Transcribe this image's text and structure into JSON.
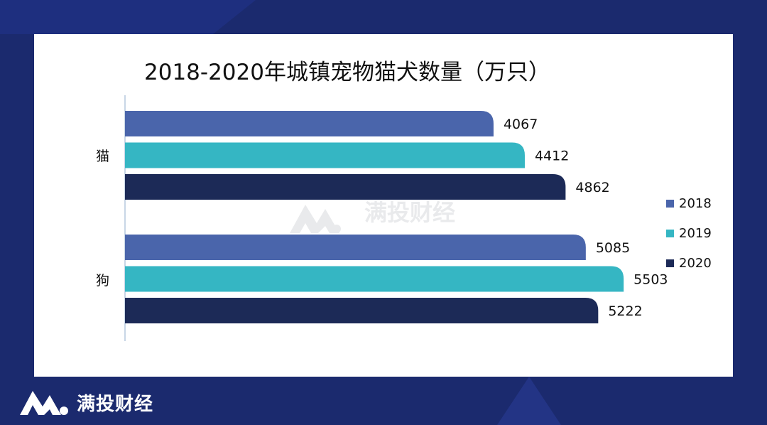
{
  "brand": {
    "name": "满投财经",
    "watermark": "满投财经",
    "colors": {
      "background": "#1b2a6e",
      "card": "#ffffff"
    }
  },
  "chart_data": {
    "type": "bar",
    "orientation": "horizontal",
    "title": "2018-2020年城镇宠物猫犬数量（万只）",
    "categories": [
      "猫",
      "狗"
    ],
    "series": [
      {
        "name": "2018",
        "color": "#4a65ab",
        "values": [
          4067,
          5085
        ]
      },
      {
        "name": "2019",
        "color": "#35b6c3",
        "values": [
          4412,
          5503
        ]
      },
      {
        "name": "2020",
        "color": "#1c2a57",
        "values": [
          4862,
          5222
        ]
      }
    ],
    "xlim": [
      0,
      7000
    ],
    "data_labels": true,
    "legend_position": "right",
    "grid": false
  }
}
